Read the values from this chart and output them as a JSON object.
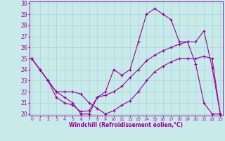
{
  "xlabel": "Windchill (Refroidissement éolien,°C)",
  "bg_color": "#c8eaea",
  "grid_color": "#a8d4d4",
  "line_color": "#990099",
  "xlim_min": -0.3,
  "xlim_max": 23.3,
  "ylim_min": 19.85,
  "ylim_max": 30.15,
  "yticks": [
    20,
    21,
    22,
    23,
    24,
    25,
    26,
    27,
    28,
    29,
    30
  ],
  "xticks": [
    0,
    1,
    2,
    3,
    4,
    5,
    6,
    7,
    8,
    9,
    10,
    11,
    12,
    13,
    14,
    15,
    16,
    17,
    18,
    19,
    20,
    21,
    22,
    23
  ],
  "line1_x": [
    0,
    1,
    2,
    3,
    4,
    5,
    6,
    7,
    8,
    9,
    10,
    11,
    12,
    13,
    14,
    15,
    16,
    17,
    18,
    19,
    20,
    21,
    22,
    23
  ],
  "line1_y": [
    25.0,
    24.0,
    23.0,
    21.5,
    21.0,
    20.8,
    20.2,
    20.3,
    21.5,
    21.7,
    22.0,
    22.5,
    23.3,
    24.0,
    24.8,
    25.3,
    25.7,
    26.0,
    26.3,
    26.5,
    26.5,
    27.5,
    24.2,
    20.0
  ],
  "line2_x": [
    0,
    1,
    2,
    3,
    4,
    5,
    6,
    7,
    8,
    9,
    10,
    11,
    12,
    13,
    14,
    15,
    16,
    17,
    18,
    19,
    20,
    21,
    22,
    23
  ],
  "line2_y": [
    25.0,
    24.0,
    23.0,
    22.0,
    22.0,
    22.0,
    21.8,
    21.0,
    20.5,
    20.0,
    20.3,
    20.8,
    21.2,
    22.0,
    23.0,
    23.8,
    24.3,
    24.7,
    25.0,
    25.0,
    25.0,
    25.2,
    25.0,
    20.0
  ],
  "line3_x": [
    0,
    1,
    2,
    3,
    4,
    5,
    6,
    7,
    8,
    9,
    10,
    11,
    12,
    13,
    14,
    15,
    16,
    17,
    18,
    19,
    20,
    21,
    22,
    23
  ],
  "line3_y": [
    25.0,
    24.0,
    23.0,
    22.0,
    21.5,
    21.0,
    20.0,
    20.0,
    21.5,
    22.0,
    24.0,
    23.5,
    24.0,
    26.5,
    29.0,
    29.5,
    29.0,
    28.5,
    26.5,
    26.5,
    24.5,
    21.0,
    20.0,
    20.0
  ]
}
